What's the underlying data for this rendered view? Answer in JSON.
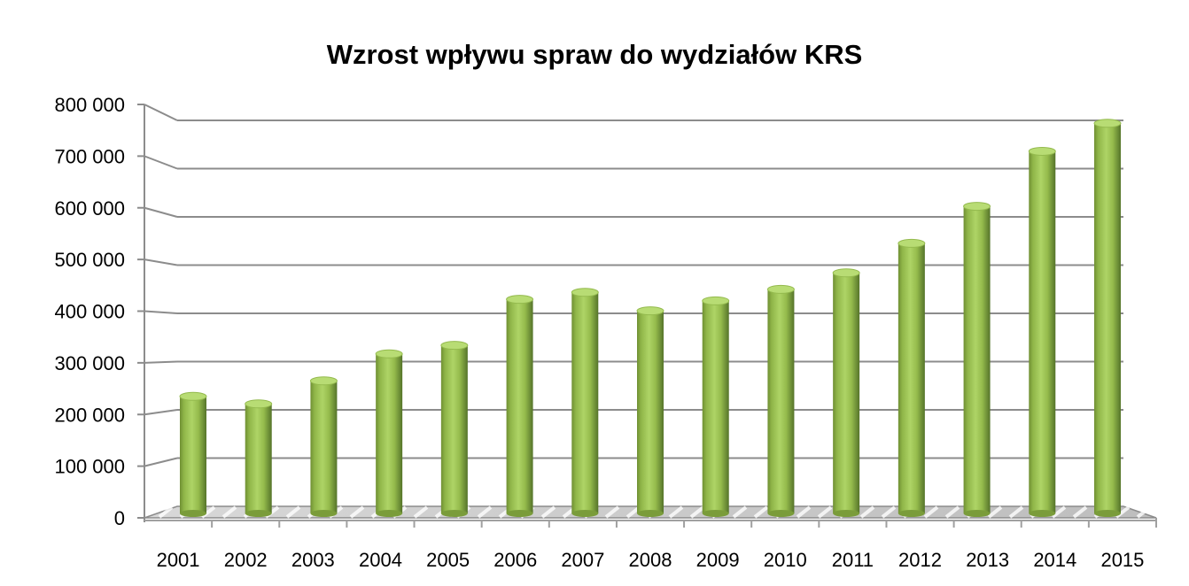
{
  "chart_data": {
    "type": "bar",
    "title": "Wzrost wpływu spraw do wydziałów KRS",
    "xlabel": "",
    "ylabel": "",
    "categories": [
      "2001",
      "2002",
      "2003",
      "2004",
      "2005",
      "2006",
      "2007",
      "2008",
      "2009",
      "2010",
      "2011",
      "2012",
      "2013",
      "2014",
      "2015"
    ],
    "values": [
      234000,
      219000,
      265000,
      319000,
      336000,
      428000,
      442000,
      405000,
      425000,
      448000,
      481000,
      540000,
      614000,
      724000,
      780000
    ],
    "ylim": [
      0,
      800000
    ],
    "yticks": [
      0,
      100000,
      200000,
      300000,
      400000,
      500000,
      600000,
      700000,
      800000
    ],
    "ytick_labels": [
      "0",
      "100 000",
      "200 000",
      "300 000",
      "400 000",
      "500 000",
      "600 000",
      "700 000",
      "800 000"
    ],
    "grid": true,
    "legend": "none",
    "style": "3d-cylinder",
    "colors": {
      "bar_light": "#a9cf63",
      "bar_mid": "#8db344",
      "bar_dark": "#4f6b23",
      "grid": "#8c8c8c"
    }
  }
}
